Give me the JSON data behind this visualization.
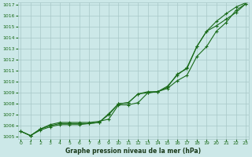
{
  "x": [
    0,
    1,
    2,
    3,
    4,
    5,
    6,
    7,
    8,
    9,
    10,
    11,
    12,
    13,
    14,
    15,
    16,
    17,
    18,
    19,
    20,
    21,
    22,
    23
  ],
  "line1": [
    1005.5,
    1005.1,
    1005.6,
    1005.9,
    1006.1,
    1006.1,
    1006.1,
    1006.2,
    1006.3,
    1007.0,
    1008.0,
    1008.1,
    1008.9,
    1009.0,
    1009.1,
    1009.5,
    1010.7,
    1011.2,
    1013.2,
    1014.6,
    1015.5,
    1016.2,
    1016.8,
    1017.2
  ],
  "line2": [
    1005.5,
    1005.1,
    1005.7,
    1006.0,
    1006.2,
    1006.2,
    1006.2,
    1006.2,
    1006.3,
    1007.1,
    1008.0,
    1008.1,
    1008.9,
    1009.1,
    1009.1,
    1009.6,
    1010.6,
    1011.3,
    1013.2,
    1014.6,
    1015.1,
    1015.7,
    1016.3,
    1017.1
  ],
  "line3": [
    1005.5,
    1005.1,
    1005.7,
    1006.1,
    1006.3,
    1006.3,
    1006.3,
    1006.3,
    1006.4,
    1006.6,
    1007.9,
    1007.9,
    1008.1,
    1009.0,
    1009.1,
    1009.4,
    1010.1,
    1010.6,
    1012.3,
    1013.2,
    1014.6,
    1015.4,
    1016.5,
    1017.1
  ],
  "ylim_min": 1005,
  "ylim_max": 1017,
  "yticks": [
    1005,
    1006,
    1007,
    1008,
    1009,
    1010,
    1011,
    1012,
    1013,
    1014,
    1015,
    1016,
    1017
  ],
  "xticks": [
    0,
    1,
    2,
    3,
    4,
    5,
    6,
    7,
    8,
    9,
    10,
    11,
    12,
    13,
    14,
    15,
    16,
    17,
    18,
    19,
    20,
    21,
    22,
    23
  ],
  "xlabel": "Graphe pression niveau de la mer (hPa)",
  "line_color": "#1a6b1a",
  "bg_color": "#cce8e8",
  "grid_color": "#a8c8c8",
  "tick_label_color": "#1a6b1a",
  "xlabel_color": "#1a3a1a",
  "marker": "+",
  "linewidth": 0.8,
  "markersize": 3.5,
  "figwidth": 3.2,
  "figheight": 2.0
}
